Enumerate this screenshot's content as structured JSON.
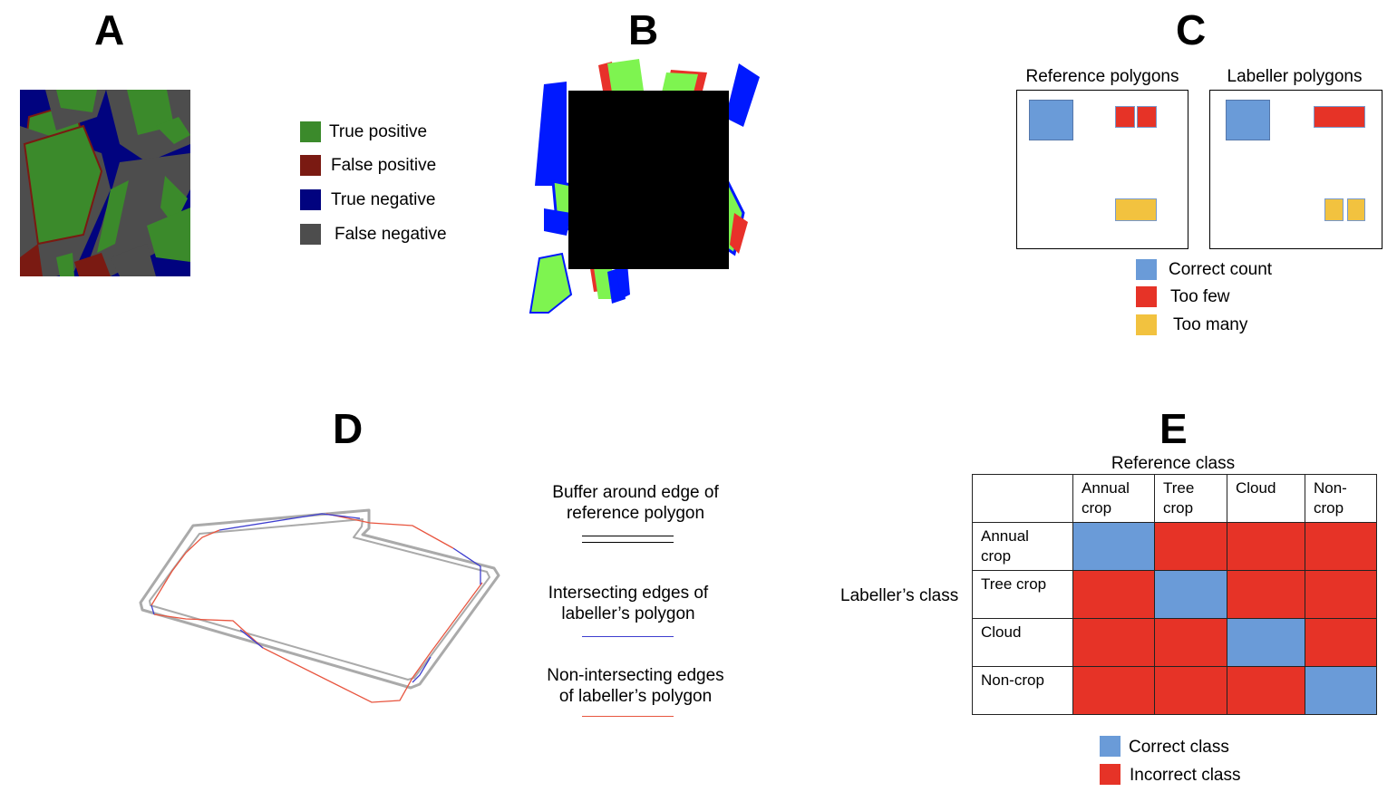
{
  "panels": {
    "a": "A",
    "b": "B",
    "c": "C",
    "d": "D",
    "e": "E"
  },
  "colors": {
    "true_positive": "#3b8a2b",
    "false_positive": "#7a1a12",
    "true_negative": "#01037f",
    "false_negative": "#4d4d4d",
    "correct": "#6a9bd8",
    "too_few": "#e63327",
    "too_many": "#f2c23f",
    "buffer": "#b3b3b3",
    "intersecting": "#3e3ecf",
    "non_intersecting": "#e8553f"
  },
  "legend_a": {
    "true_positive": "True positive",
    "false_positive": "False positive",
    "true_negative": "True negative",
    "false_negative": "False negative"
  },
  "panel_c": {
    "reference_title": "Reference polygons",
    "labeller_title": "Labeller polygons",
    "legend": {
      "correct": "Correct count",
      "too_few": "Too few",
      "too_many": "Too many"
    }
  },
  "panel_d": {
    "buffer_line1": "Buffer around edge of",
    "buffer_line2": "reference polygon",
    "intersect_line1": "Intersecting edges of",
    "intersect_line2": "labeller’s polygon",
    "nonintersect_line1": "Non-intersecting edges",
    "nonintersect_line2": "of labeller’s polygon"
  },
  "panel_e": {
    "reference_class": "Reference class",
    "labeller_class": "Labeller’s class",
    "columns": [
      "Annual\ncrop",
      "Tree\ncrop",
      "Cloud",
      "Non-\ncrop"
    ],
    "rows": [
      "Annual\ncrop",
      "Tree crop",
      "Cloud",
      "Non-crop"
    ],
    "legend": {
      "correct": "Correct class",
      "incorrect": "Incorrect class"
    }
  }
}
